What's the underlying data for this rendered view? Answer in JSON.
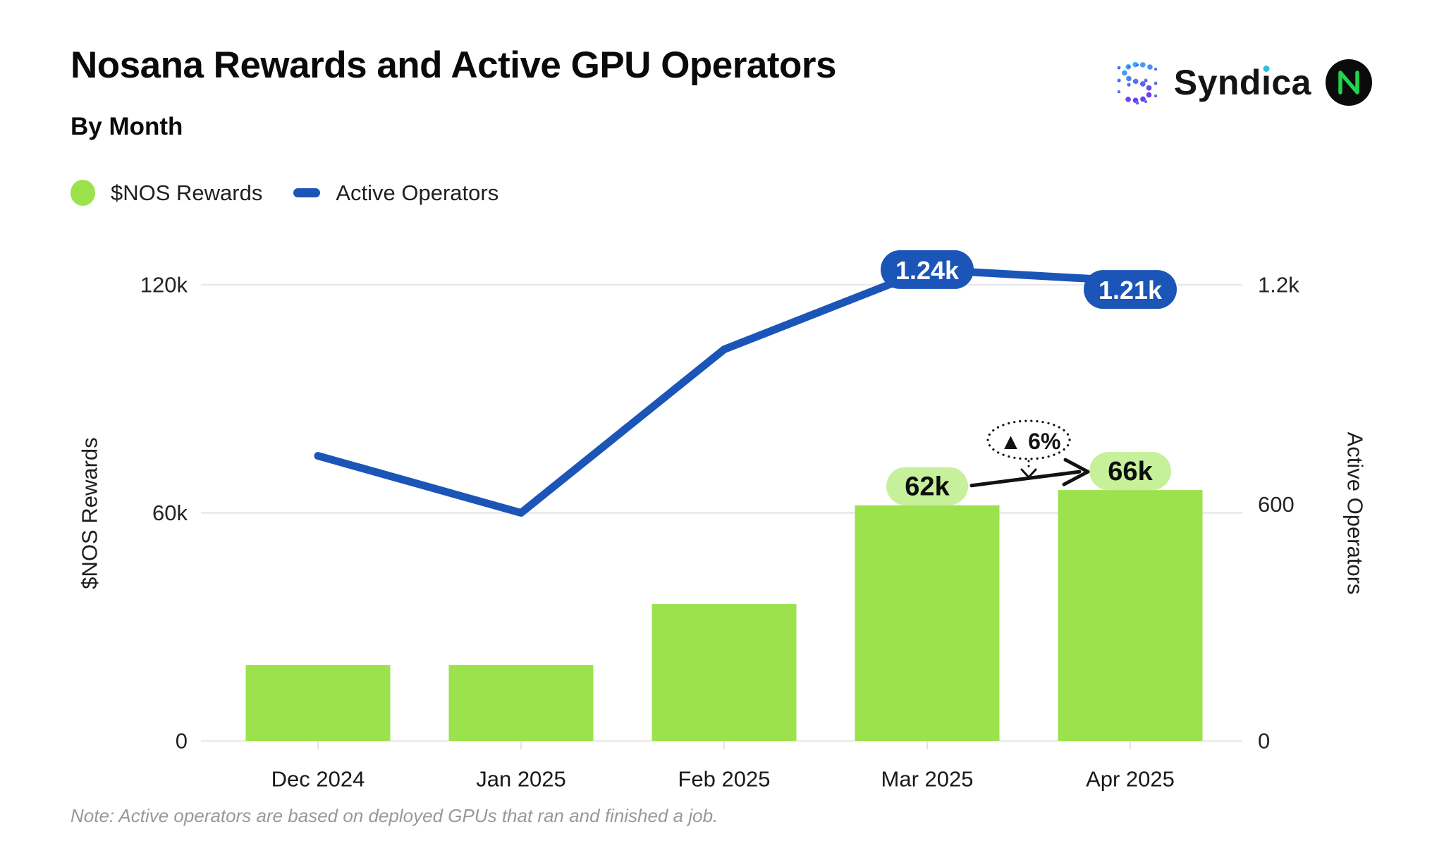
{
  "header": {
    "brand": {
      "syndica": "Syndica"
    }
  },
  "note": "Note: Active operators are based on deployed GPUs that ran and finished a job.",
  "colors": {
    "bar_green": "#9BE24D",
    "pill_green": "#C6F099",
    "line_blue": "#1B55B8",
    "grid_gray": "#E9E9EC",
    "tick_text": "#222428",
    "axis_title_text": "#1c1e21",
    "note_gray": "#97999c",
    "annotation_black": "#111214",
    "nosana_green": "#22D34E",
    "syndica_gradient_top": "#38B6F5",
    "syndica_gradient_bottom": "#6D3DF0"
  },
  "chart_data": {
    "type": "bar+line combo",
    "title": "Nosana Rewards and Active GPU Operators",
    "subtitle": "By Month",
    "categories": [
      "Dec 2024",
      "Jan 2025",
      "Feb 2025",
      "Mar 2025",
      "Apr 2025"
    ],
    "series": [
      {
        "name": "$NOS Rewards",
        "type": "bar",
        "axis": "left",
        "values": [
          20000,
          20000,
          36000,
          62000,
          66000
        ],
        "value_labels": [
          "",
          "",
          "",
          "62k",
          "66k"
        ]
      },
      {
        "name": "Active Operators",
        "type": "line",
        "axis": "right",
        "values": [
          750,
          600,
          1030,
          1240,
          1210
        ],
        "value_labels": [
          "",
          "",
          "",
          "1.24k",
          "1.21k"
        ]
      }
    ],
    "left_axis": {
      "label": "$NOS Rewards",
      "tick_values": [
        0,
        60000,
        120000
      ],
      "tick_labels": [
        "0",
        "60k",
        "120k"
      ],
      "max": 120000
    },
    "right_axis": {
      "label": "Active Operators",
      "tick_values": [
        0,
        600,
        1200
      ],
      "tick_labels": [
        "0",
        "600",
        "1.2k"
      ],
      "max": 1200
    },
    "grid": "horizontal only",
    "legend_position": "top-left",
    "annotation": {
      "badge_text": "▲ 6%",
      "meaning": "increase from 62k to 66k",
      "from_label": "62k",
      "to_label": "66k"
    }
  }
}
